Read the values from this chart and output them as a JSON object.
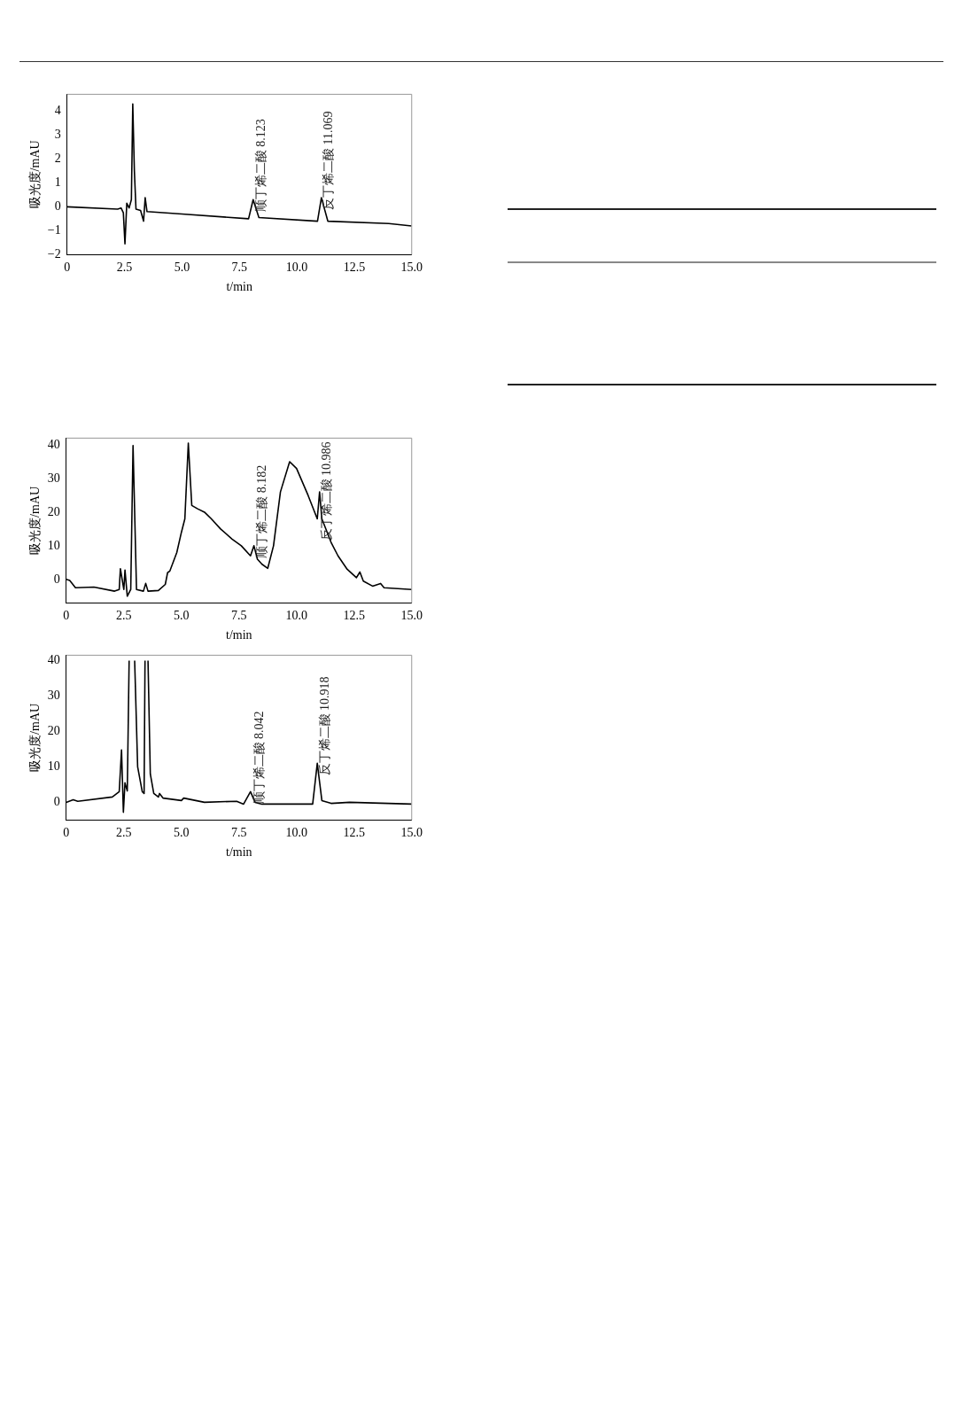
{
  "chart_data": [
    {
      "type": "line",
      "xlabel": "t/min",
      "ylabel": "吸光度/mAU",
      "xlim": [
        0,
        15
      ],
      "ylim": [
        -2,
        4.7
      ],
      "grid": false,
      "legend": false,
      "xticks": [
        0,
        2.5,
        {
          "value": 5,
          "label": "5.0"
        },
        7.5,
        {
          "value": 10,
          "label": "10.0"
        },
        12.5,
        {
          "value": 15,
          "label": "15.0"
        }
      ],
      "yticks": [
        {
          "value": -2,
          "label": "−2"
        },
        {
          "value": -1,
          "label": "−1"
        },
        0,
        1,
        2,
        3,
        4
      ],
      "series": [
        {
          "color": "#000000",
          "x": [
            0,
            2.2,
            2.35,
            2.45,
            2.52,
            2.6,
            2.7,
            2.8,
            2.86,
            2.93,
            3.0,
            3.2,
            3.33,
            3.4,
            3.48,
            5.0,
            7.9,
            8.1,
            8.35,
            10.9,
            11.07,
            11.35,
            14.0,
            15.0
          ],
          "values": [
            0,
            -0.1,
            -0.05,
            -0.25,
            -1.55,
            0.15,
            -0.05,
            0.3,
            4.3,
            1.5,
            -0.1,
            -0.15,
            -0.6,
            0.38,
            -0.2,
            -0.3,
            -0.5,
            0.3,
            -0.45,
            -0.6,
            0.38,
            -0.6,
            -0.7,
            -0.8
          ]
        }
      ],
      "annotations": [
        {
          "text": "顺丁烯二酸 8.123",
          "x": 8.123,
          "y": 0.3
        },
        {
          "text": "反丁烯二酸 11.069",
          "x": 11.069,
          "y": 0.38
        }
      ]
    },
    {
      "type": "line",
      "xlabel": "t/min",
      "ylabel": "吸光度/mAU",
      "xlim": [
        0,
        15
      ],
      "ylim": [
        -7,
        42
      ],
      "grid": false,
      "legend": false,
      "xticks": [
        0,
        2.5,
        {
          "value": 5,
          "label": "5.0"
        },
        7.5,
        {
          "value": 10,
          "label": "10.0"
        },
        12.5,
        {
          "value": 15,
          "label": "15.0"
        }
      ],
      "yticks": [
        0,
        10,
        20,
        30,
        40
      ],
      "series": [
        {
          "color": "#000000",
          "x": [
            0,
            0.15,
            0.4,
            1.2,
            2.1,
            2.3,
            2.35,
            2.45,
            2.5,
            2.55,
            2.65,
            2.8,
            2.9,
            2.97,
            3.05,
            3.35,
            3.45,
            3.55,
            4.0,
            4.3,
            4.4,
            4.5,
            4.8,
            5.0,
            5.15,
            5.3,
            5.45,
            5.7,
            6.0,
            6.3,
            6.7,
            7.2,
            7.6,
            8.0,
            8.15,
            8.3,
            8.5,
            8.75,
            9.0,
            9.3,
            9.7,
            10.0,
            10.5,
            10.9,
            11.0,
            11.1,
            11.5,
            11.8,
            12.2,
            12.6,
            12.75,
            12.9,
            13.3,
            13.65,
            13.8,
            15
          ],
          "values": [
            0,
            -0.3,
            -2.5,
            -2.3,
            -3.5,
            -3.0,
            3.2,
            -1,
            -3,
            2.8,
            -5,
            -3,
            39.8,
            20,
            -3,
            -3.5,
            -1.2,
            -3.5,
            -3.3,
            -1.5,
            2.0,
            2.5,
            8,
            14,
            18,
            40.5,
            22,
            21,
            20,
            18,
            15,
            12,
            10,
            7,
            10,
            6,
            4.5,
            3.3,
            10,
            26,
            35,
            33,
            25,
            18,
            26,
            18,
            11,
            7,
            3,
            0.5,
            2.2,
            -0.5,
            -2,
            -1.2,
            -2.5,
            -3
          ]
        }
      ],
      "annotations": [
        {
          "text": "顺丁烯二酸 8.182",
          "x": 8.182,
          "y": 10
        },
        {
          "text": "反丁烯二酸 10.986",
          "x": 10.986,
          "y": 26
        }
      ]
    },
    {
      "type": "line",
      "xlabel": "t/min",
      "ylabel": "吸光度/mAU",
      "xlim": [
        0,
        15
      ],
      "ylim": [
        -5,
        41.5
      ],
      "grid": false,
      "legend": false,
      "xticks": [
        0,
        2.5,
        {
          "value": 5,
          "label": "5.0"
        },
        7.5,
        {
          "value": 10,
          "label": "10.0"
        },
        12.5,
        {
          "value": 15,
          "label": "15.0"
        }
      ],
      "yticks": [
        0,
        10,
        20,
        30,
        40
      ],
      "series": [
        {
          "color": "#000000",
          "x": [
            0,
            0.3,
            0.5,
            2.0,
            2.3,
            2.4,
            2.48,
            2.55,
            2.65,
            2.73,
            2.85,
            2.97,
            3.1,
            3.3,
            3.38,
            3.42,
            3.5,
            3.55,
            3.65,
            3.8,
            4.0,
            4.05,
            4.2,
            5.0,
            5.1,
            6.0,
            7.4,
            7.7,
            8.0,
            8.2,
            8.5,
            10.7,
            10.9,
            11.1,
            11.5,
            12.3,
            15
          ],
          "values": [
            0,
            0.7,
            0.3,
            1.5,
            3,
            14.8,
            -2.8,
            5.5,
            3.2,
            40,
            null,
            40,
            10,
            3,
            2.5,
            40,
            null,
            40,
            8,
            2.5,
            1.5,
            2.5,
            1.2,
            0.5,
            1.2,
            0,
            0.3,
            -0.5,
            3,
            0,
            -0.5,
            -0.5,
            11,
            0.5,
            -0.3,
            0,
            -0.5
          ]
        }
      ],
      "annotations": [
        {
          "text": "顺丁烯二酸 8.042",
          "x": 8.042,
          "y": 3
        },
        {
          "text": "反丁烯二酸 10.918",
          "x": 10.918,
          "y": 11
        }
      ]
    }
  ]
}
